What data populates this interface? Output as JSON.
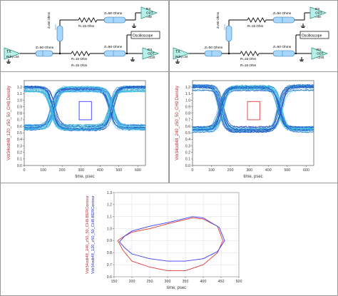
{
  "schematics": [
    {
      "tx_label": "TX",
      "tx_rdrv": "Rdrv=34",
      "r_top": "R=15 Ohm",
      "r_mid": "R=15 Ohm",
      "r_bot": "R=15 Ohm",
      "tl_left": "Z=50 Ohms",
      "tl_top": "Z=50 Ohms",
      "tl_bot": "Z=50 Ohms",
      "rx_top": [
        "RX",
        "ODT",
        "=48"
      ],
      "rx_bot": [
        "RX",
        "ODT",
        "=120"
      ],
      "scope": "Oscilloscope"
    },
    {
      "tx_label": "TX",
      "tx_rdrv": "Rdrv=34",
      "r_top": "R=15 Ohm",
      "r_mid": "R=15 Ohm",
      "r_bot": "R=15 Ohm",
      "tl_left": "Z=50 Ohms",
      "tl_top": "Z=50 Ohms",
      "tl_bot": "Z=50 Ohms",
      "rx_top": [
        "RX",
        "ODT",
        "=48"
      ],
      "rx_bot": [
        "RX",
        "ODT",
        "=240"
      ],
      "scope": "Oscilloscope"
    }
  ],
  "chart_data": [
    {
      "type": "line",
      "ylabel": "Vdr34odt48_120_z50_50_CH8.Density",
      "xlabel": "time, psec",
      "xlim": [
        0,
        640
      ],
      "ylim": [
        0.0,
        1.3
      ],
      "xticks": [
        0,
        100,
        200,
        300,
        400,
        500,
        600
      ],
      "yticks": [
        0.0,
        0.1,
        0.2,
        0.3,
        0.4,
        0.5,
        0.6,
        0.7,
        0.8,
        0.9,
        1.0,
        1.1,
        1.2
      ],
      "eye": {
        "high": 1.17,
        "low": 0.58,
        "crossings": [
          150,
          460
        ],
        "period": 625
      },
      "mask": {
        "t": [
          290,
          355
        ],
        "v": [
          0.7,
          0.98
        ],
        "color": "#3a3aff"
      }
    },
    {
      "type": "line",
      "ylabel": "Vdr34odt48_240_z50_50_CH9.Density",
      "xlabel": "time, psec",
      "xlim": [
        0,
        640
      ],
      "ylim": [
        0.0,
        1.3
      ],
      "xticks": [
        0,
        100,
        200,
        300,
        400,
        500,
        600
      ],
      "yticks": [
        0.0,
        0.1,
        0.2,
        0.3,
        0.4,
        0.5,
        0.6,
        0.7,
        0.8,
        0.9,
        1.0,
        1.1,
        1.2
      ],
      "eye": {
        "high": 1.19,
        "low": 0.55,
        "crossings": [
          150,
          460
        ],
        "period": 625
      },
      "mask": {
        "t": [
          290,
          355
        ],
        "v": [
          0.7,
          0.98
        ],
        "color": "#e03a3a"
      }
    },
    {
      "type": "line",
      "xlabel": "time, psec",
      "ylabel_series": [
        "Vdr34odt48_240_z50_50_CH9.BERContour",
        "Vdr34odt48_120_z50_50_CH8.BERContour"
      ],
      "xlim": [
        150,
        500
      ],
      "ylim": [
        0.6,
        1.3
      ],
      "xticks": [
        150,
        200,
        250,
        300,
        350,
        400,
        450,
        500
      ],
      "yticks": [
        0.6,
        0.7,
        0.8,
        0.9,
        1.0,
        1.1,
        1.2,
        1.3
      ],
      "series": [
        {
          "name": "Vdr34odt48_240_z50_50_CH9.BERContour",
          "color": "#e03a3a",
          "x": [
            160,
            175,
            200,
            250,
            300,
            350,
            400,
            440,
            455,
            440,
            400,
            370,
            300,
            250,
            200,
            175,
            160
          ],
          "y": [
            0.9,
            0.82,
            0.73,
            0.68,
            0.65,
            0.65,
            0.7,
            0.8,
            0.9,
            1.02,
            1.08,
            1.09,
            1.04,
            1.0,
            0.97,
            0.93,
            0.9
          ]
        },
        {
          "name": "Vdr34odt48_120_z50_50_CH8.BERContour",
          "color": "#3a3aff",
          "x": [
            165,
            180,
            200,
            250,
            300,
            350,
            400,
            440,
            460,
            445,
            400,
            370,
            300,
            250,
            200,
            180,
            165
          ],
          "y": [
            0.89,
            0.84,
            0.79,
            0.75,
            0.73,
            0.73,
            0.75,
            0.81,
            0.9,
            1.01,
            1.09,
            1.1,
            1.05,
            1.02,
            0.98,
            0.94,
            0.89
          ]
        }
      ]
    }
  ]
}
